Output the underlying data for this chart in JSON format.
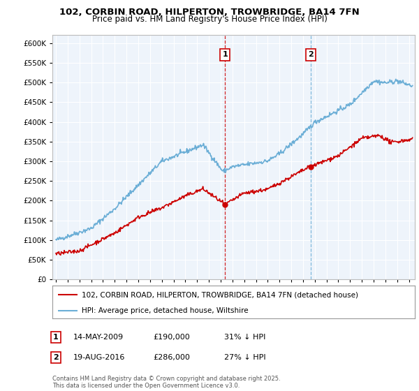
{
  "title": "102, CORBIN ROAD, HILPERTON, TROWBRIDGE, BA14 7FN",
  "subtitle": "Price paid vs. HM Land Registry's House Price Index (HPI)",
  "ylim": [
    0,
    620000
  ],
  "yticks": [
    0,
    50000,
    100000,
    150000,
    200000,
    250000,
    300000,
    350000,
    400000,
    450000,
    500000,
    550000,
    600000
  ],
  "xlim_start": 1994.7,
  "xlim_end": 2025.5,
  "hpi_color": "#6baed6",
  "price_color": "#cc0000",
  "marker1_date": 2009.37,
  "marker1_price": 190000,
  "marker2_date": 2016.63,
  "marker2_price": 286000,
  "marker1_vline_color": "#cc0000",
  "marker2_vline_color": "#6baed6",
  "legend_label_price": "102, CORBIN ROAD, HILPERTON, TROWBRIDGE, BA14 7FN (detached house)",
  "legend_label_hpi": "HPI: Average price, detached house, Wiltshire",
  "note1_label": "1",
  "note1_date": "14-MAY-2009",
  "note1_price": "£190,000",
  "note1_pct": "31% ↓ HPI",
  "note2_label": "2",
  "note2_date": "19-AUG-2016",
  "note2_price": "£286,000",
  "note2_pct": "27% ↓ HPI",
  "copyright": "Contains HM Land Registry data © Crown copyright and database right 2025.\nThis data is licensed under the Open Government Licence v3.0.",
  "background_color": "#ffffff",
  "plot_bg_color": "#eef4fb",
  "grid_color": "#ffffff"
}
